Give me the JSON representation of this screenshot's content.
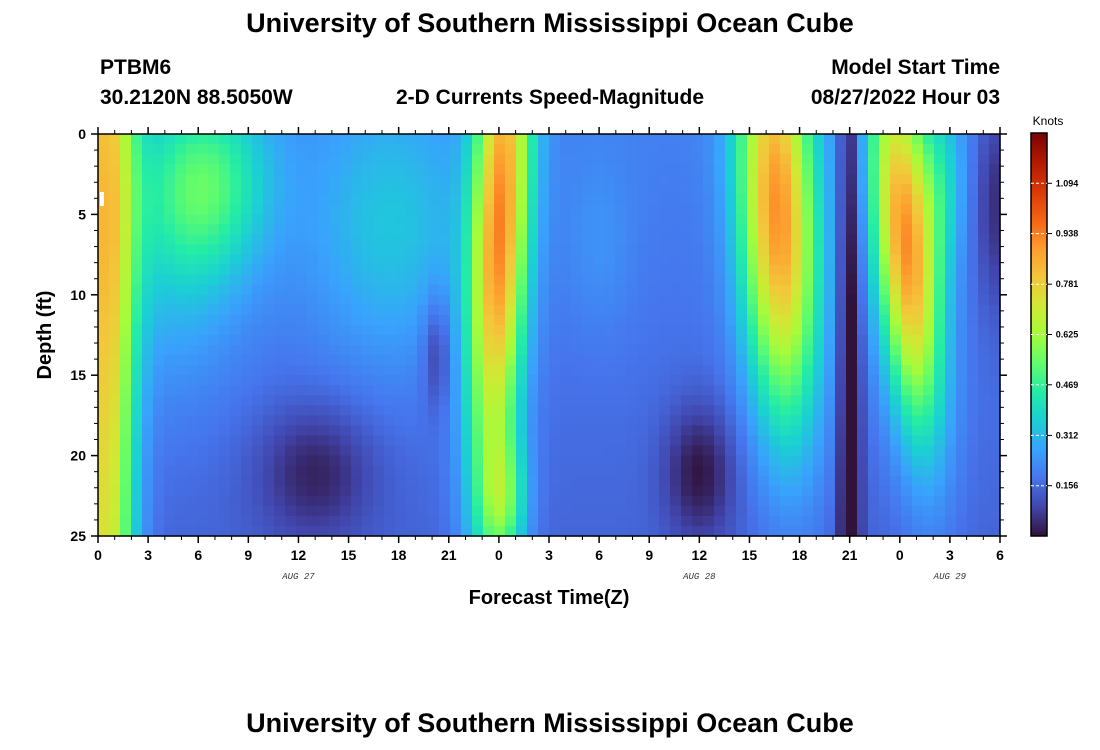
{
  "header": {
    "title": "University of Southern Mississippi Ocean Cube",
    "station": "PTBM6",
    "coords": "30.2120N  88.5050W",
    "product": "2-D Currents Speed-Magnitude",
    "start_label": "Model Start Time",
    "start_value": "08/27/2022 Hour 03"
  },
  "footer": {
    "title": "University of Southern Mississippi Ocean Cube"
  },
  "chart_data": {
    "type": "heatmap",
    "title": "2-D Currents Speed-Magnitude",
    "xlabel": "Forecast Time(Z)",
    "ylabel": "Depth (ft)",
    "x_tick_labels": [
      "0",
      "3",
      "6",
      "9",
      "12",
      "15",
      "18",
      "21",
      "0",
      "3",
      "6",
      "9",
      "12",
      "15",
      "18",
      "21",
      "0",
      "3",
      "6"
    ],
    "date_labels": [
      {
        "label": "AUG 27",
        "at_index": 4
      },
      {
        "label": "AUG 28",
        "at_index": 12
      },
      {
        "label": "AUG 29",
        "at_index": 17
      }
    ],
    "y_ticks": [
      0,
      5,
      10,
      15,
      20,
      25
    ],
    "ylim": [
      0,
      25
    ],
    "x_hours": [
      0,
      54
    ],
    "colorbar": {
      "unit": "Knots",
      "range": [
        0,
        1.25
      ],
      "tick_labels": [
        "0.156",
        "0.312",
        "0.469",
        "0.625",
        "0.781",
        "0.938",
        "1.094"
      ]
    },
    "features": [
      {
        "t": 0.5,
        "d": 12,
        "st": 1.2,
        "sd": 60,
        "amp": 0.6,
        "sk": 0
      },
      {
        "t": 6.5,
        "d": 3,
        "st": 2.6,
        "sd": 4,
        "amp": 0.28,
        "sk": 0
      },
      {
        "t": 4.5,
        "d": 8,
        "st": 3.0,
        "sd": 6,
        "amp": 0.12,
        "sk": 0
      },
      {
        "t": 17.5,
        "d": 6,
        "st": 3.5,
        "sd": 6,
        "amp": 0.15,
        "sk": 0
      },
      {
        "t": 13,
        "d": 21,
        "st": 2.5,
        "sd": 3,
        "amp": -0.13,
        "sk": 0
      },
      {
        "t": 20.3,
        "d": 13.5,
        "st": 0.6,
        "sd": 2.5,
        "amp": -0.12,
        "sk": 0
      },
      {
        "t": 24.3,
        "d": 6,
        "st": 1.2,
        "sd": 12,
        "amp": 0.72,
        "sk": -0.04
      },
      {
        "t": 24.3,
        "d": 23,
        "st": 1.0,
        "sd": 3,
        "amp": 0.28,
        "sk": 0
      },
      {
        "t": 30,
        "d": 7,
        "st": 1.5,
        "sd": 4,
        "amp": 0.05,
        "sk": 0
      },
      {
        "t": 36,
        "d": 21,
        "st": 1.5,
        "sd": 3,
        "amp": -0.15,
        "sk": 0
      },
      {
        "t": 40.5,
        "d": 5,
        "st": 1.6,
        "sd": 9,
        "amp": 0.72,
        "sk": 0.04
      },
      {
        "t": 45,
        "d": 12,
        "st": 0.5,
        "sd": 30,
        "amp": -0.22,
        "sk": 0
      },
      {
        "t": 47.8,
        "d": 7,
        "st": 1.3,
        "sd": 8,
        "amp": 0.72,
        "sk": 0.08
      },
      {
        "t": 50.5,
        "d": 3,
        "st": 1.0,
        "sd": 4,
        "amp": 0.16,
        "sk": 0
      },
      {
        "t": 53.8,
        "d": 4,
        "st": 1.0,
        "sd": 5,
        "amp": -0.14,
        "sk": 0
      }
    ],
    "baseline": 0.2,
    "baseline_depth_gradient": -0.002
  },
  "colors": {
    "stops": [
      "#30123b",
      "#4145ab",
      "#4675ed",
      "#39a2fc",
      "#1bcfd4",
      "#24eca6",
      "#61fc6c",
      "#a4fc3b",
      "#d1e834",
      "#f3c63a",
      "#fe9b2d",
      "#f36315",
      "#d93806",
      "#b11901",
      "#7a0403"
    ]
  }
}
